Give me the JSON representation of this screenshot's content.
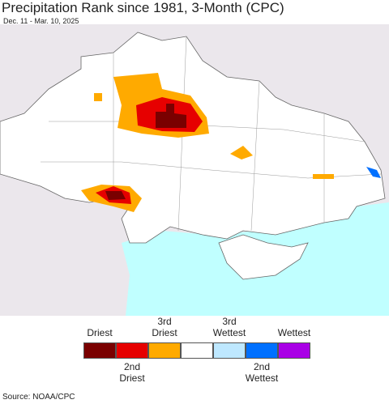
{
  "header": {
    "title": "Precipitation Rank since 1981, 3-Month (CPC)",
    "subtitle": "Dec. 11 - Mar. 10, 2025"
  },
  "legend": {
    "items": [
      {
        "label": "Driest",
        "color": "#7a0000"
      },
      {
        "label": "2nd Driest",
        "color": "#e60000"
      },
      {
        "label": "3rd Driest",
        "color": "#ffaa00"
      },
      {
        "label": null,
        "color": "#ffffff"
      },
      {
        "label": "3rd Wettest",
        "color": "#bee8ff"
      },
      {
        "label": "2nd Wettest",
        "color": "#0070ff"
      },
      {
        "label": "Wettest",
        "color": "#a900e6"
      }
    ]
  },
  "source": "Source: NOAA/CPC"
}
